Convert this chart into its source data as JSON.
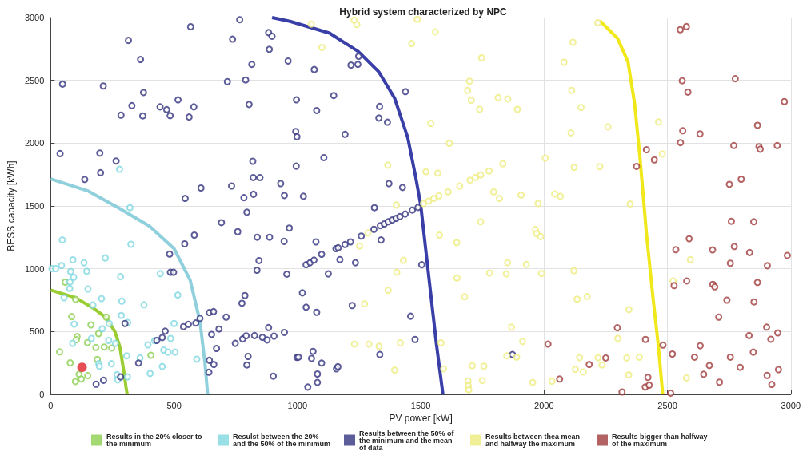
{
  "chart_data": {
    "type": "scatter",
    "title": "Hybrid system characterized by NPC",
    "xlabel": "PV power [kW]",
    "ylabel": "BESS capacity [kWh]",
    "xlim": [
      0,
      3000
    ],
    "xticks": [
      0,
      500,
      1000,
      1500,
      2000,
      2500,
      3000
    ],
    "ylim": [
      0,
      3000
    ],
    "yticks": [
      0,
      500,
      1000,
      1500,
      2000,
      2500,
      3000
    ],
    "grid": true,
    "legend": "bottom",
    "marker": "circle",
    "series": [
      {
        "name": "Results in the 20% closer to the minimum",
        "color": "#8cd050",
        "x": [
          59,
          101,
          85,
          163,
          194,
          107,
          104,
          149,
          183,
          217,
          247,
          36,
          189,
          79,
          225,
          406,
          115,
          124,
          150,
          100
        ],
        "values": [
          893,
          756,
          619,
          553,
          483,
          460,
          435,
          412,
          373,
          377,
          369,
          338,
          278,
          251,
          615,
          311,
          160,
          122,
          149,
          102
        ]
      },
      {
        "name": "Resulst between the 20% and the 50% of the minimum",
        "color": "#7fd8e0",
        "x": [
          279,
          321,
          325,
          47,
          5,
          20,
          44,
          90,
          135,
          146,
          81,
          93,
          78,
          77,
          151,
          221,
          283,
          444,
          54,
          171,
          206,
          288,
          378,
          515,
          286,
          95,
          237,
          209,
          312,
          500,
          165,
          235,
          262,
          89,
          394,
          421,
          486,
          458,
          475,
          504,
          308,
          362,
          246,
          195,
          197,
          452,
          403,
          269,
          272,
          311,
          592
        ],
        "values": [
          1792,
          1486,
          1195,
          1229,
          1001,
          1001,
          1026,
          1071,
          1048,
          980,
          978,
          932,
          895,
          843,
          839,
          1086,
          937,
          961,
          769,
          711,
          762,
          742,
          713,
          791,
          628,
          559,
          564,
          522,
          572,
          564,
          445,
          429,
          406,
          406,
          394,
          427,
          445,
          352,
          336,
          336,
          307,
          290,
          244,
          245,
          224,
          222,
          166,
          157,
          116,
          139,
          280
        ]
      },
      {
        "name": "Results between the 50% of the minimum and the mean of data",
        "color": "#333380",
        "x": [
          48,
          213,
          315,
          364,
          376,
          329,
          285,
          373,
          443,
          470,
          484,
          516,
          567,
          561,
          580,
          716,
          737,
          766,
          790,
          815,
          804,
          883,
          897,
          886,
          962,
          996,
          993,
          998,
          995,
          38,
          199,
          202,
          265,
          138,
          545,
          609,
          733,
          783,
          819,
          821,
          848,
          822,
          795,
          932,
          947,
          692,
          758,
          837,
          887,
          946,
          967,
          582,
          543,
          482,
          485,
          498,
          844,
          836,
          957,
          787,
          775,
          643,
          660,
          711,
          538,
          558,
          588,
          605,
          301,
          464,
          452,
          430,
          682,
          652,
          672,
          748,
          778,
          792,
          826,
          858,
          877,
          905,
          883,
          947,
          998,
          800,
          795,
          643,
          661,
          641,
          902,
          356,
          283,
          214,
          184,
          1068,
          1217,
          1245,
          1248,
          1078,
          1147,
          1438,
          1333,
          1330,
          1365,
          1193,
          1107,
          1371,
          1426,
          1024,
          1312,
          1075,
          1339,
          1098,
          1172,
          1235,
          1125,
          1504,
          1020,
          1035,
          1078,
          1222,
          1459,
          1477,
          1334,
          1004,
          1057,
          1063,
          1098,
          1158,
          1164,
          1081,
          1081,
          1042,
          1872,
          1035,
          1051,
          1067,
          1156,
          1165,
          1193,
          1215,
          1259,
          1310,
          1336,
          1352,
          1368,
          1384,
          1400,
          1415,
          1437,
          1466,
          1489
        ],
        "values": [
          2470,
          2455,
          2818,
          2666,
          2403,
          2299,
          2223,
          2217,
          2289,
          2267,
          2219,
          2345,
          2927,
          2208,
          2289,
          2490,
          2828,
          2983,
          2503,
          2627,
          2308,
          2880,
          2851,
          2747,
          2654,
          2345,
          2093,
          2051,
          1817,
          1917,
          1921,
          1765,
          1858,
          1711,
          1560,
          1643,
          1659,
          1566,
          1856,
          1726,
          1726,
          1593,
          1450,
          1678,
          1583,
          1367,
          1295,
          1251,
          1251,
          1218,
          1324,
          1268,
          1198,
          1117,
          972,
          972,
          1065,
          988,
          957,
          787,
          725,
          651,
          659,
          615,
          539,
          557,
          568,
          605,
          564,
          503,
          452,
          429,
          520,
          477,
          365,
          406,
          441,
          466,
          468,
          454,
          433,
          464,
          532,
          493,
          294,
          302,
          234,
          271,
          238,
          176,
          145,
          249,
          139,
          112,
          81,
          2586,
          2621,
          2627,
          2691,
          2260,
          2379,
          2410,
          2292,
          2200,
          2167,
          2070,
          1885,
          1678,
          1647,
          1577,
          1486,
          1214,
          1229,
          1115,
          1073,
          1048,
          959,
          1032,
          808,
          694,
          653,
          707,
          622,
          437,
          317,
          296,
          286,
          342,
          249,
          203,
          220,
          162,
          95,
          58,
          317,
          1032,
          1048,
          1069,
          1160,
          1167,
          1193,
          1214,
          1260,
          1314,
          1343,
          1357,
          1374,
          1388,
          1401,
          1415,
          1436,
          1467,
          1488
        ]
      },
      {
        "name": "Results between thea mean and halfway the maximum",
        "color": "#eeec80",
        "x": [
          1511,
          1532,
          1553,
          1574,
          1611,
          1658,
          1700,
          1722,
          1743,
          1777,
          1833,
          1286,
          1252,
          1056,
          1230,
          1241,
          1486,
          1559,
          1463,
          1099,
          1747,
          1698,
          1690,
          1705,
          1739,
          1814,
          1853,
          1892,
          1541,
          1616,
          2005,
          1366,
          1521,
          1569,
          1796,
          1819,
          1907,
          1976,
          1401,
          1743,
          1965,
          1970,
          1986,
          1576,
          1646,
          1430,
          1403,
          1647,
          1779,
          1847,
          1852,
          1928,
          1990,
          1678,
          1368,
          1272,
          1868,
          1231,
          1290,
          1331,
          1417,
          1582,
          1913,
          1849,
          1889,
          1394,
          1593,
          1709,
          1756,
          1692,
          1693,
          1695,
          1750,
          1954,
          2218,
          2117,
          2081,
          2112,
          2150,
          2259,
          2109,
          2464,
          2479,
          2122,
          2226,
          2043,
          2066,
          2349,
          2121,
          2134,
          2175,
          2344,
          2593,
          2523,
          2299,
          2144,
          2219,
          2235,
          2335,
          2386,
          2127,
          2159,
          2343,
          2577,
          2032
        ],
        "values": [
          1519,
          1539,
          1560,
          1581,
          1612,
          1658,
          1705,
          1726,
          1747,
          1778,
          1836,
          1285,
          1181,
          2948,
          2979,
          2944,
          2986,
          2886,
          2793,
          2762,
          2679,
          2493,
          2420,
          2341,
          2269,
          2362,
          2352,
          2269,
          2157,
          1999,
          1881,
          1825,
          1772,
          1761,
          1612,
          1560,
          1587,
          1519,
          1508,
          1374,
          1312,
          1280,
          1256,
          1268,
          1208,
          1067,
          972,
          926,
          966,
          959,
          1048,
          1034,
          963,
          777,
          829,
          721,
          535,
          400,
          400,
          383,
          410,
          410,
          421,
          307,
          296,
          193,
          203,
          228,
          224,
          106,
          68,
          37,
          110,
          95,
          2959,
          2803,
          2644,
          2420,
          2285,
          2130,
          2082,
          2169,
          1914,
          1807,
          1813,
          1595,
          1577,
          1515,
          984,
          758,
          779,
          675,
          1073,
          903,
          445,
          292,
          292,
          234,
          290,
          296,
          199,
          178,
          155,
          131,
          104
        ]
      },
      {
        "name": "Results bigger than halfway of the maximum",
        "color": "#a03c3c",
        "x": [
          2552,
          2577,
          2560,
          2775,
          2583,
          2974,
          2865,
          2562,
          2632,
          2553,
          2769,
          2871,
          2876,
          2945,
          2415,
          2447,
          2375,
          2751,
          2799,
          2759,
          2850,
          2588,
          2534,
          2683,
          2771,
          2833,
          2986,
          2755,
          2905,
          2578,
          2527,
          2684,
          2692,
          2865,
          2741,
          2851,
          2708,
          2902,
          2947,
          2831,
          2919,
          2297,
          2411,
          2482,
          2016,
          2633,
          2520,
          2610,
          2755,
          2848,
          2670,
          2795,
          2950,
          2904,
          2647,
          2923,
          2711,
          2183,
          2250,
          2063,
          2421,
          2410,
          2426,
          2316,
          2513
        ],
        "values": [
          2903,
          2928,
          2497,
          2513,
          2406,
          2331,
          2142,
          2099,
          2074,
          2004,
          1981,
          1972,
          1952,
          1981,
          1948,
          1867,
          1815,
          1672,
          1713,
          1378,
          1374,
          1239,
          1152,
          1150,
          1177,
          1129,
          1106,
          1044,
          1024,
          903,
          866,
          876,
          856,
          891,
          750,
          736,
          615,
          535,
          489,
          468,
          439,
          530,
          437,
          392,
          400,
          387,
          321,
          296,
          296,
          336,
          230,
          215,
          197,
          151,
          160,
          79,
          97,
          238,
          290,
          122,
          135,
          58,
          73,
          19,
          10
        ]
      },
      {
        "type": "scatter",
        "color": "#e0202a",
        "x": [
          127
        ],
        "values": [
          215
        ]
      },
      {
        "type": "line",
        "marker": "none",
        "color": "#9acd32",
        "x": [
          0,
          100,
          170,
          225,
          260,
          280,
          295,
          305,
          310
        ],
        "values": [
          830,
          770,
          690,
          610,
          500,
          380,
          200,
          60,
          0
        ]
      },
      {
        "type": "line",
        "marker": "none",
        "color": "#8fd0dc",
        "x": [
          0,
          150,
          270,
          400,
          500,
          565,
          605,
          625,
          636
        ],
        "values": [
          1715,
          1620,
          1490,
          1340,
          1160,
          910,
          580,
          250,
          0
        ]
      },
      {
        "type": "line",
        "marker": "none",
        "color": "#3a3fa8",
        "x": [
          897,
          970,
          1130,
          1246,
          1331,
          1394,
          1447,
          1479,
          1500,
          1532,
          1563,
          1590
        ],
        "values": [
          3000,
          2970,
          2876,
          2731,
          2565,
          2358,
          2047,
          1736,
          1508,
          949,
          410,
          0
        ]
      },
      {
        "type": "line",
        "marker": "none",
        "color": "#f0e81a",
        "x": [
          2226,
          2298,
          2340,
          2367,
          2388,
          2415,
          2442,
          2463,
          2481
        ],
        "values": [
          2975,
          2834,
          2648,
          2316,
          1902,
          1280,
          762,
          390,
          0
        ]
      }
    ]
  }
}
